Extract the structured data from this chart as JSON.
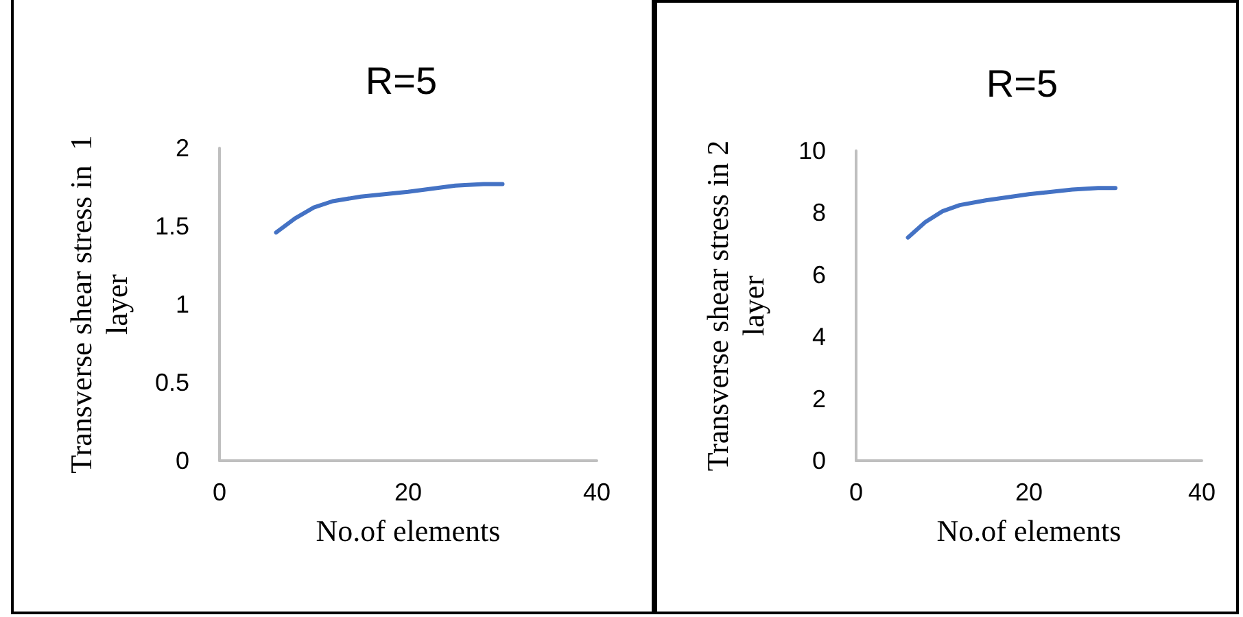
{
  "chart_data": [
    {
      "type": "line",
      "title": "R=5",
      "xlabel": "No.of elements",
      "ylabel": "Transverse shear stress in  1 layer",
      "x": [
        6,
        8,
        10,
        12,
        15,
        20,
        25,
        28,
        30
      ],
      "series": [
        {
          "color": "#4472c4",
          "values": [
            1.46,
            1.55,
            1.62,
            1.66,
            1.69,
            1.72,
            1.76,
            1.77,
            1.77
          ]
        }
      ],
      "xlim": [
        0,
        40
      ],
      "xticks": [
        0,
        20,
        40
      ],
      "ylim": [
        0,
        2
      ],
      "yticks": [
        0,
        0.5,
        1,
        1.5,
        2
      ],
      "grid": false,
      "marker": "none",
      "line_style": "solid"
    },
    {
      "type": "line",
      "title": "R=5",
      "xlabel": "No.of elements",
      "ylabel": "Transverse shear stress in 2 layer",
      "x": [
        6,
        8,
        10,
        12,
        15,
        20,
        25,
        28,
        30
      ],
      "series": [
        {
          "color": "#4472c4",
          "values": [
            7.2,
            7.7,
            8.05,
            8.25,
            8.4,
            8.6,
            8.75,
            8.8,
            8.8
          ]
        }
      ],
      "xlim": [
        0,
        40
      ],
      "xticks": [
        0,
        20,
        40
      ],
      "ylim": [
        0,
        10
      ],
      "yticks": [
        0,
        2,
        4,
        6,
        8,
        10
      ],
      "grid": false,
      "marker": "none",
      "line_style": "solid"
    }
  ]
}
